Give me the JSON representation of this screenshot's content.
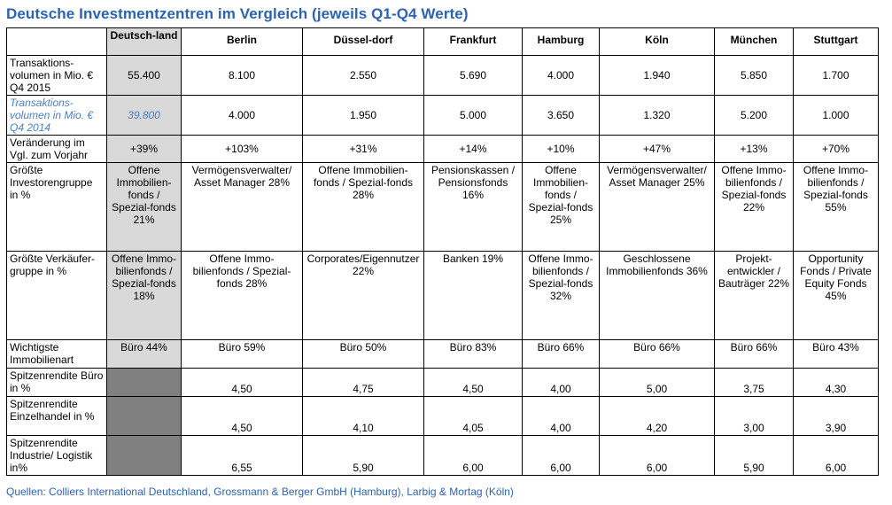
{
  "title": "Deutsche Investmentzentren im Vergleich (jeweils Q1-Q4 Werte)",
  "source": "Quellen: Colliers International Deutschland, Grossmann & Berger GmbH (Hamburg), Larbig & Mortag (Köln)",
  "colors": {
    "title": "#2a63b4",
    "highlight_column": "#d9d9d9",
    "empty_cell": "#808080",
    "prior_year_text": "#4a7fc1"
  },
  "columns": [
    "Deutsch-land",
    "Berlin",
    "Düssel-dorf",
    "Frankfurt",
    "Hamburg",
    "Köln",
    "München",
    "Stuttgart"
  ],
  "rows": {
    "vol2015": {
      "label": "Transaktions-volumen in Mio. € Q4 2015",
      "values": [
        "55.400",
        "8.100",
        "2.550",
        "5.690",
        "4.000",
        "1.940",
        "5.850",
        "1.700"
      ]
    },
    "vol2014": {
      "label": "Transaktions-volumen in Mio. € Q4 2014",
      "values": [
        "39.800",
        "4.000",
        "1.950",
        "5.000",
        "3.650",
        "1.320",
        "5.200",
        "1.000"
      ]
    },
    "change": {
      "label": "Veränderung im Vgl. zum Vorjahr",
      "values": [
        "+39%",
        "+103%",
        "+31%",
        "+14%",
        "+10%",
        "+47%",
        "+13%",
        "+70%"
      ]
    },
    "investor": {
      "label": "Größte Investorengruppe in %",
      "values": [
        "Offene Immobilien-fonds / Spezial-fonds 21%",
        "Vermögensverwalter/ Asset Manager 28%",
        "Offene Immobilien-fonds / Spezial-fonds 28%",
        "Pensionskassen / Pensionsfonds 16%",
        "Offene Immobilien-fonds / Spezial-fonds 25%",
        "Vermögensverwalter/ Asset Manager 25%",
        "Offene Immo-bilienfonds / Spezial-fonds 22%",
        "Offene Immo-bilienfonds / Spezial-fonds 55%"
      ]
    },
    "seller": {
      "label": "Größte Verkäufer-gruppe in %",
      "values": [
        "Offene Immo-bilienfonds / Spezial-fonds 18%",
        "Offene Immo-bilienfonds / Spezial-fonds 28%",
        "Corporates/Eigennutzer 22%",
        "Banken 19%",
        "Offene Immo-bilienfonds / Spezial-fonds 32%",
        "Geschlossene Immobilienfonds 36%",
        "Projekt-entwickler / Bauträger 22%",
        "Opportunity Fonds / Private Equity Fonds 45%"
      ]
    },
    "property": {
      "label": "Wichtigste Immobilienart",
      "values": [
        "Büro 44%",
        "Büro 59%",
        "Büro 50%",
        "Büro 83%",
        "Büro 66%",
        "Büro 66%",
        "Büro 66%",
        "Büro 43%"
      ]
    },
    "yield_office": {
      "label": "Spitzenrendite Büro in %",
      "values": [
        "",
        "4,50",
        "4,75",
        "4,50",
        "4,00",
        "5,00",
        "3,75",
        "4,30"
      ]
    },
    "yield_retail": {
      "label": "Spitzenrendite Einzelhandel in %",
      "values": [
        "",
        "4,50",
        "4,10",
        "4,05",
        "4,00",
        "4,20",
        "3,00",
        "3,90"
      ]
    },
    "yield_industrial": {
      "label": "Spitzenrendite Industrie/ Logistik in%",
      "values": [
        "",
        "6,55",
        "5,90",
        "6,00",
        "6,00",
        "6,00",
        "5,90",
        "6,00"
      ]
    }
  }
}
